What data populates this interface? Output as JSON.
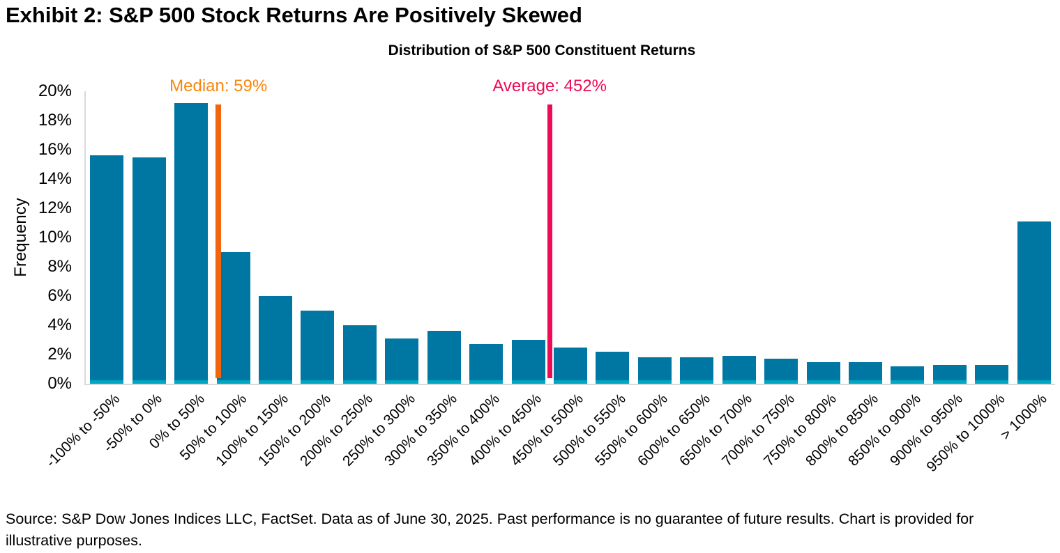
{
  "exhibit_title": "Exhibit 2: S&P 500 Stock Returns Are Positively Skewed",
  "source_note": "Source: S&P Dow Jones Indices LLC, FactSet. Data as of June 30, 2025. Past performance is no guarantee of future results. Chart is provided for illustrative purposes.",
  "chart_data": {
    "type": "bar",
    "title": "Distribution of S&P 500 Constituent Returns",
    "xlabel": "",
    "ylabel": "Frequency",
    "ylim": [
      0,
      20
    ],
    "y_ticks": [
      0,
      2,
      4,
      6,
      8,
      10,
      12,
      14,
      16,
      18,
      20
    ],
    "y_tick_suffix": "%",
    "grid": false,
    "legend": "none",
    "categories": [
      "-100% to -50%",
      "-50% to 0%",
      "0% to 50%",
      "50% to 100%",
      "100% to 150%",
      "150% to 200%",
      "200% to 250%",
      "250% to 300%",
      "300% to 350%",
      "350% to 400%",
      "400% to 450%",
      "450% to 500%",
      "500% to 550%",
      "550% to 600%",
      "600% to 650%",
      "650% to 700%",
      "700% to 750%",
      "750% to 800%",
      "800% to 850%",
      "850% to 900%",
      "900% to 950%",
      "950% to 1000%",
      "> 1000%"
    ],
    "values": [
      15.6,
      15.5,
      19.2,
      9.0,
      6.0,
      5.0,
      4.0,
      3.1,
      3.6,
      2.7,
      3.0,
      2.5,
      2.2,
      1.8,
      1.8,
      1.9,
      1.7,
      1.5,
      1.5,
      1.2,
      1.3,
      1.3,
      11.1
    ],
    "bucket_start": -100,
    "bucket_width": 50,
    "annotations": [
      {
        "name": "median",
        "label": "Median: 59%",
        "value": 59,
        "text_color": "#F8860D",
        "line_color": "#F2640D",
        "line_width": 8
      },
      {
        "name": "average",
        "label": "Average: 452%",
        "value": 452,
        "text_color": "#EE0A54",
        "line_color": "#EE0A54",
        "line_width": 7
      }
    ],
    "colors": {
      "bar": "#0076A3",
      "bar_base_strip": "#00A7C4",
      "axis": "#D9D9D9",
      "text": "#000000"
    }
  }
}
